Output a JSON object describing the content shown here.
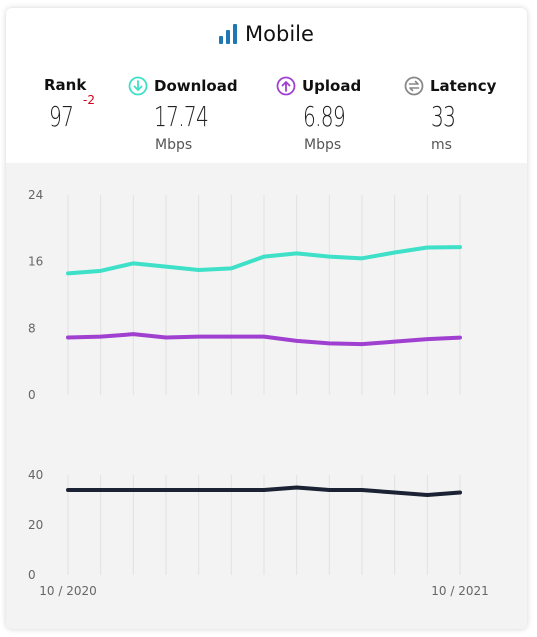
{
  "header": {
    "title": "Mobile",
    "rank": {
      "label": "Rank",
      "value": "97",
      "change": "-2"
    },
    "download": {
      "label": "Download",
      "value": "17.74",
      "unit": "Mbps"
    },
    "upload": {
      "label": "Upload",
      "value": "6.89",
      "unit": "Mbps"
    },
    "latency": {
      "label": "Latency",
      "value": "33",
      "unit": "ms"
    }
  },
  "colors": {
    "download": "#3ee0c8",
    "upload": "#a040d0",
    "latency": "#1b2233",
    "rank_change": "#d0021b"
  },
  "chart_data": [
    {
      "type": "line",
      "x": [
        "10 / 2020",
        "",
        "",
        "",
        "",
        "",
        "",
        "",
        "",
        "",
        "",
        "",
        "10 / 2021"
      ],
      "ylim": [
        0,
        24
      ],
      "yticks": [
        "0",
        "8",
        "16",
        "24"
      ],
      "series": [
        {
          "name": "Download",
          "values": [
            14.6,
            14.9,
            15.8,
            15.4,
            15.0,
            15.2,
            16.6,
            17.0,
            16.6,
            16.4,
            17.1,
            17.7,
            17.74
          ]
        },
        {
          "name": "Upload",
          "values": [
            6.9,
            7.0,
            7.3,
            6.9,
            7.0,
            7.0,
            7.0,
            6.5,
            6.2,
            6.1,
            6.4,
            6.7,
            6.89
          ]
        }
      ]
    },
    {
      "type": "line",
      "x": [
        "10 / 2020",
        "",
        "",
        "",
        "",
        "",
        "",
        "",
        "",
        "",
        "",
        "",
        "10 / 2021"
      ],
      "ylim": [
        0,
        40
      ],
      "yticks": [
        "0",
        "20",
        "40"
      ],
      "series": [
        {
          "name": "Latency",
          "values": [
            34,
            34,
            34,
            34,
            34,
            34,
            34,
            35,
            34,
            34,
            33,
            32,
            33
          ]
        }
      ]
    }
  ]
}
